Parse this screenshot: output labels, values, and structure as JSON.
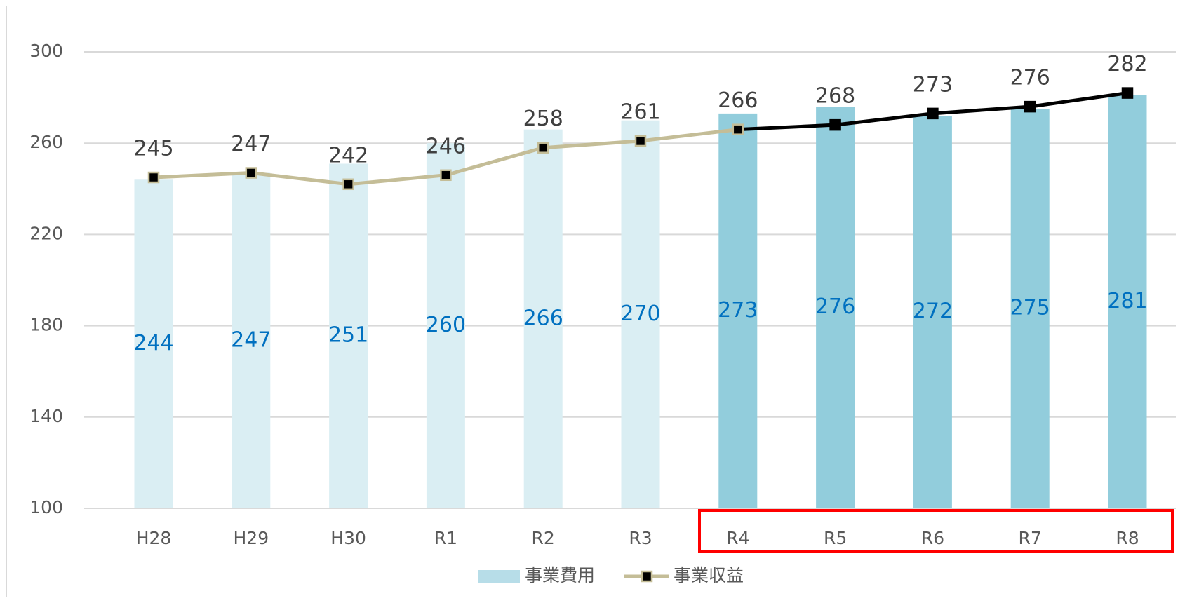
{
  "chart_data": {
    "type": "bar_line",
    "categories": [
      "H28",
      "H29",
      "H30",
      "R1",
      "R2",
      "R3",
      "R4",
      "R5",
      "R6",
      "R7",
      "R8"
    ],
    "series": [
      {
        "name": "事業費用",
        "type": "bar",
        "color": "#b7dde8",
        "colors": [
          "#daeef3",
          "#daeef3",
          "#daeef3",
          "#daeef3",
          "#daeef3",
          "#daeef3",
          "#92cddc",
          "#92cddc",
          "#92cddc",
          "#92cddc",
          "#92cddc"
        ],
        "label_color": "#0070c0",
        "values": [
          244,
          247,
          251,
          260,
          266,
          270,
          273,
          276,
          272,
          275,
          281
        ]
      },
      {
        "name": "事業収益",
        "type": "line",
        "color": "#c4bd97",
        "colors": [
          "#c4bd97",
          "#c4bd97",
          "#c4bd97",
          "#c4bd97",
          "#c4bd97",
          "#c4bd97",
          "#c4bd97",
          "#000000",
          "#000000",
          "#000000",
          "#000000"
        ],
        "label_color": "#404040",
        "values": [
          245,
          247,
          242,
          246,
          258,
          261,
          266,
          268,
          273,
          276,
          282
        ]
      }
    ],
    "ylim": [
      100,
      300
    ],
    "yticks": [
      100,
      140,
      180,
      220,
      260,
      300
    ],
    "grid": true,
    "legend": "bottom"
  }
}
